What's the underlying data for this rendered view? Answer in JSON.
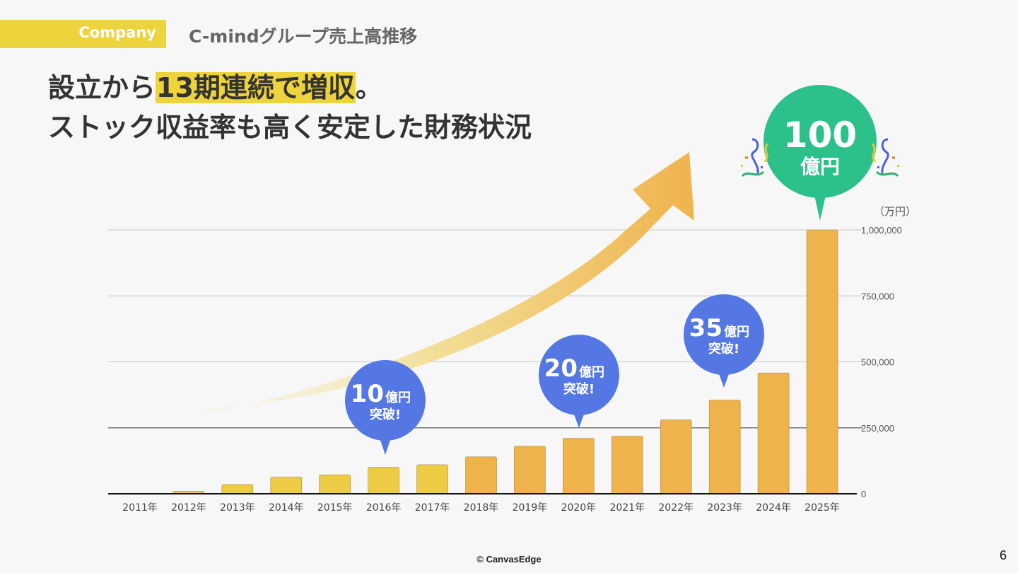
{
  "header": {
    "tag_label": "Company",
    "section_title": "C-mindグループ売上高推移"
  },
  "headline": {
    "line1_pre": "設立から",
    "line1_highlight": "13期連続で増収",
    "line1_post": "。",
    "line2": "ストック収益率も高く安定した財務状況"
  },
  "colors": {
    "accent_yellow": "#edd33c",
    "bar_early": "#edcc45",
    "bar_late": "#efb34c",
    "bubble_blue": "#5577e3",
    "bubble_green": "#2cc08a"
  },
  "chart_data": {
    "type": "bar",
    "title": "",
    "unit_label": "（万円）",
    "xlabel": "",
    "ylabel": "",
    "ylim": [
      0,
      1000000
    ],
    "yticks": [
      0,
      250000,
      500000,
      750000,
      1000000
    ],
    "ytick_labels": [
      "0",
      "250,000",
      "500,000",
      "750,000",
      "1,000,000"
    ],
    "grid": true,
    "categories": [
      "2011年",
      "2012年",
      "2013年",
      "2014年",
      "2015年",
      "2016年",
      "2017年",
      "2018年",
      "2019年",
      "2020年",
      "2021年",
      "2022年",
      "2023年",
      "2024年",
      "2025年"
    ],
    "values": [
      0,
      10000,
      35000,
      64000,
      72000,
      100000,
      110000,
      140000,
      180000,
      210000,
      218000,
      280000,
      355000,
      458000,
      1000000
    ],
    "annotations": [
      {
        "category": "2016年",
        "number": "10",
        "unit": "億円",
        "sub": "突破!",
        "style": "blue"
      },
      {
        "category": "2020年",
        "number": "20",
        "unit": "億円",
        "sub": "突破!",
        "style": "blue"
      },
      {
        "category": "2023年",
        "number": "35",
        "unit": "億円",
        "sub": "突破!",
        "style": "blue"
      },
      {
        "category": "2025年",
        "number": "100",
        "unit": "億円",
        "sub": "",
        "style": "green"
      }
    ],
    "trend_arrow": "upward growth arrow"
  },
  "footer": {
    "copyright": "© CanvasEdge",
    "page_number": "6"
  }
}
